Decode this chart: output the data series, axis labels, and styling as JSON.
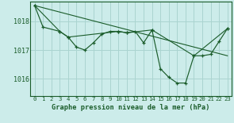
{
  "title": "Graphe pression niveau de la mer (hPa)",
  "background_color": "#ccecea",
  "grid_color": "#aad4d0",
  "line_color": "#1a5c2a",
  "xlim": [
    -0.5,
    23.5
  ],
  "ylim": [
    1015.4,
    1018.7
  ],
  "yticks": [
    1016,
    1017,
    1018
  ],
  "xticks": [
    0,
    1,
    2,
    3,
    4,
    5,
    6,
    7,
    8,
    9,
    10,
    11,
    12,
    13,
    14,
    15,
    16,
    17,
    18,
    19,
    20,
    21,
    22,
    23
  ],
  "series1_x": [
    0,
    1,
    3,
    4,
    5,
    6,
    7,
    8,
    9,
    10,
    11,
    12,
    13,
    14,
    15,
    16,
    17,
    18,
    19,
    20,
    21,
    22,
    23
  ],
  "series1_y": [
    1018.55,
    1017.8,
    1017.65,
    1017.45,
    1017.1,
    1017.0,
    1017.25,
    1017.55,
    1017.65,
    1017.65,
    1017.6,
    1017.65,
    1017.25,
    1017.7,
    1016.35,
    1016.05,
    1015.85,
    1015.85,
    1016.8,
    1016.8,
    1016.85,
    1017.3,
    1017.75
  ],
  "series2_x": [
    0,
    3,
    4,
    10,
    11,
    14,
    19,
    23
  ],
  "series2_y": [
    1018.55,
    1017.65,
    1017.45,
    1017.65,
    1017.6,
    1017.7,
    1016.8,
    1017.75
  ],
  "series3_x": [
    0,
    23
  ],
  "series3_y": [
    1018.55,
    1016.8
  ]
}
